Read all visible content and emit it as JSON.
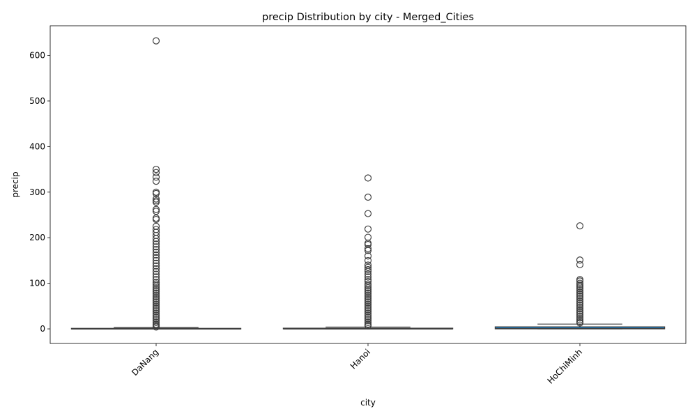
{
  "chart_data": {
    "type": "box",
    "title": "precip Distribution by city - Merged_Cities",
    "xlabel": "city",
    "ylabel": "precip",
    "ylim": [
      -32,
      665
    ],
    "yticks": [
      0,
      100,
      200,
      300,
      400,
      500,
      600
    ],
    "categories": [
      "DaNang",
      "Hanoi",
      "HoChiMinh"
    ],
    "box_color": "#1f77b4",
    "line_color": "#3f3f3f",
    "boxes": [
      {
        "name": "DaNang",
        "whisker_low": 0,
        "q1": 0,
        "median": 0,
        "q3": 1.2,
        "whisker_high": 3,
        "outliers": [
          632,
          350,
          343,
          333,
          324,
          300,
          297,
          285,
          281,
          278,
          262,
          258,
          243,
          240,
          225,
          218,
          212,
          205,
          198,
          192,
          186,
          180,
          174,
          168,
          162,
          156,
          150,
          144,
          138,
          132,
          126,
          120,
          114,
          108,
          102,
          98,
          94,
          90,
          86,
          82,
          78,
          74,
          70,
          66,
          62,
          58,
          54,
          50,
          46,
          42,
          38,
          34,
          30,
          26,
          22,
          18,
          14,
          10,
          7,
          4
        ]
      },
      {
        "name": "Hanoi",
        "whisker_low": 0,
        "q1": 0,
        "median": 0,
        "q3": 1.6,
        "whisker_high": 4,
        "outliers": [
          331,
          289,
          253,
          219,
          201,
          188,
          185,
          176,
          172,
          160,
          150,
          140,
          135,
          130,
          126,
          120,
          114,
          108,
          104,
          98,
          94,
          90,
          86,
          82,
          78,
          74,
          70,
          66,
          62,
          58,
          54,
          50,
          46,
          42,
          38,
          34,
          30,
          26,
          22,
          18,
          14,
          10,
          7
        ]
      },
      {
        "name": "HoChiMinh",
        "whisker_low": 0,
        "q1": 0,
        "median": 0.5,
        "q3": 4.5,
        "whisker_high": 10.5,
        "outliers": [
          226,
          151,
          141,
          108,
          105,
          100,
          96,
          92,
          88,
          84,
          80,
          76,
          72,
          68,
          64,
          60,
          56,
          52,
          48,
          44,
          40,
          36,
          32,
          28,
          24,
          20,
          16,
          13
        ]
      }
    ]
  }
}
